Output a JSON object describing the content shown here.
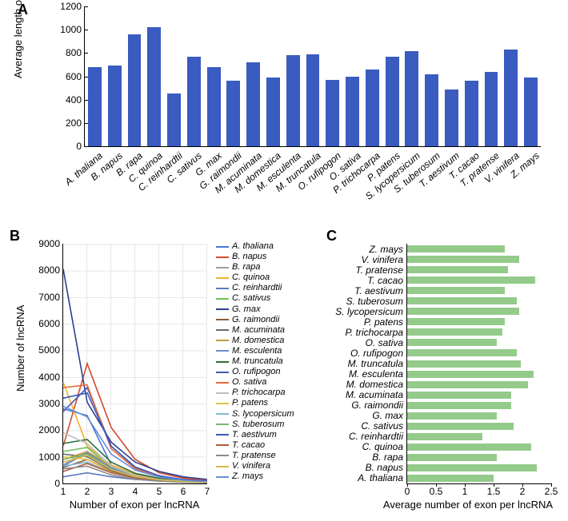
{
  "panelA": {
    "type": "bar",
    "ylabel": "Average length of lncRNA",
    "ylim": [
      0,
      1200
    ],
    "ytick_step": 200,
    "bar_color": "#3a5bbf",
    "categories": [
      "A. thaliana",
      "B. napus",
      "B. rapa",
      "C. quinoa",
      "C. reinhardtii",
      "C. sativus",
      "G. max",
      "G. raimondii",
      "M. acuminata",
      "M. domestica",
      "M. esculenta",
      "M. truncatula",
      "O. rufipogon",
      "O. sativa",
      "P. trichocarpa",
      "P. patens",
      "S. lycopersicum",
      "S. tuberosum",
      "T. aestivum",
      "T. cacao",
      "T. pratense",
      "V. vinifera",
      "Z. mays"
    ],
    "values": [
      680,
      690,
      960,
      1020,
      450,
      770,
      680,
      560,
      720,
      590,
      780,
      790,
      570,
      600,
      660,
      770,
      815,
      620,
      490,
      560,
      640,
      830,
      590
    ]
  },
  "panelB": {
    "type": "line",
    "xlabel": "Number of exon per lncRNA",
    "ylabel": "Number of lncRNA",
    "ylim": [
      0,
      9000
    ],
    "ytick_step": 1000,
    "xlim": [
      1,
      7
    ],
    "xtick_step": 1,
    "grid_color": "#e6e6e6",
    "line_width": 1.6,
    "series": [
      {
        "name": "A. thaliana",
        "color": "#4a78d6",
        "values": [
          2800,
          2550,
          700,
          250,
          120,
          70,
          40
        ]
      },
      {
        "name": "B. napus",
        "color": "#d24a2d",
        "values": [
          1400,
          4500,
          2100,
          900,
          400,
          200,
          100
        ]
      },
      {
        "name": "B. rapa",
        "color": "#9aa0a6",
        "values": [
          700,
          1200,
          550,
          250,
          120,
          60,
          30
        ]
      },
      {
        "name": "C. quinoa",
        "color": "#f2b233",
        "values": [
          3800,
          1400,
          700,
          350,
          180,
          100,
          60
        ]
      },
      {
        "name": "C. reinhardtii",
        "color": "#5a7bc2",
        "values": [
          250,
          400,
          250,
          150,
          100,
          60,
          40
        ]
      },
      {
        "name": "C. sativus",
        "color": "#70bf5a",
        "values": [
          1200,
          1350,
          600,
          280,
          140,
          80,
          40
        ]
      },
      {
        "name": "G. max",
        "color": "#2e3e8c",
        "values": [
          8050,
          3050,
          1550,
          800,
          450,
          250,
          150
        ]
      },
      {
        "name": "G. raimondii",
        "color": "#8c5a2e",
        "values": [
          600,
          900,
          450,
          220,
          110,
          60,
          30
        ]
      },
      {
        "name": "M. acuminata",
        "color": "#6a6a6a",
        "values": [
          1100,
          1000,
          500,
          250,
          130,
          70,
          40
        ]
      },
      {
        "name": "M. domestica",
        "color": "#c49a3a",
        "values": [
          900,
          1200,
          650,
          320,
          170,
          90,
          50
        ]
      },
      {
        "name": "M. esculenta",
        "color": "#6b8cc7",
        "values": [
          650,
          1150,
          580,
          290,
          150,
          80,
          45
        ]
      },
      {
        "name": "M. truncatula",
        "color": "#2e6e3a",
        "values": [
          1500,
          1650,
          800,
          380,
          190,
          100,
          55
        ]
      },
      {
        "name": "O. rufipogon",
        "color": "#4a56b0",
        "values": [
          2700,
          3600,
          1400,
          600,
          280,
          140,
          80
        ]
      },
      {
        "name": "O. sativa",
        "color": "#e96a3a",
        "values": [
          3600,
          3700,
          1300,
          550,
          260,
          130,
          70
        ]
      },
      {
        "name": "P. trichocarpa",
        "color": "#bfbfbf",
        "values": [
          1900,
          1500,
          650,
          300,
          150,
          80,
          45
        ]
      },
      {
        "name": "P. patens",
        "color": "#e2c24a",
        "values": [
          1000,
          900,
          420,
          200,
          100,
          55,
          30
        ]
      },
      {
        "name": "S. lycopersicum",
        "color": "#7fb8d6",
        "values": [
          650,
          800,
          400,
          200,
          105,
          60,
          35
        ]
      },
      {
        "name": "S. tuberosum",
        "color": "#7ab56a",
        "values": [
          900,
          1100,
          520,
          250,
          125,
          70,
          40
        ]
      },
      {
        "name": "T. aestivum",
        "color": "#3a5bbf",
        "values": [
          3200,
          3400,
          1400,
          620,
          290,
          145,
          80
        ]
      },
      {
        "name": "T. cacao",
        "color": "#b55a3a",
        "values": [
          450,
          750,
          400,
          210,
          110,
          60,
          35
        ]
      },
      {
        "name": "T. pratense",
        "color": "#8a8a8a",
        "values": [
          550,
          650,
          320,
          160,
          85,
          48,
          28
        ]
      },
      {
        "name": "V. vinifera",
        "color": "#d6b84a",
        "values": [
          800,
          1050,
          520,
          260,
          135,
          75,
          42
        ]
      },
      {
        "name": "Z. mays",
        "color": "#6a8fd6",
        "values": [
          2900,
          2500,
          1100,
          500,
          240,
          120,
          65
        ]
      }
    ]
  },
  "panelC": {
    "type": "hbar",
    "xlabel": "Average number of exon per lncRNA",
    "xlim": [
      0,
      2.5
    ],
    "xtick_step": 0.5,
    "bar_color": "#94cb8b",
    "categories": [
      "Z. mays",
      "V. vinifera",
      "T. pratense",
      "T. cacao",
      "T. aestivum",
      "S. tuberosum",
      "S. lycopersicum",
      "P. patens",
      "P. trichocarpa",
      "O. sativa",
      "O. rufipogon",
      "M. truncatula",
      "M. esculenta",
      "M. domestica",
      "M. acuminata",
      "G. raimondii",
      "G. max",
      "C. sativus",
      "C. reinhardtii",
      "C. quinoa",
      "B. rapa",
      "B. napus",
      "A. thaliana"
    ],
    "values": [
      1.7,
      1.95,
      1.75,
      2.22,
      1.7,
      1.9,
      1.95,
      1.7,
      1.65,
      1.55,
      1.9,
      1.97,
      2.2,
      2.1,
      1.8,
      1.8,
      1.55,
      1.85,
      1.3,
      2.15,
      1.55,
      2.25,
      1.5
    ]
  },
  "labels": {
    "A": "A",
    "B": "B",
    "C": "C"
  }
}
